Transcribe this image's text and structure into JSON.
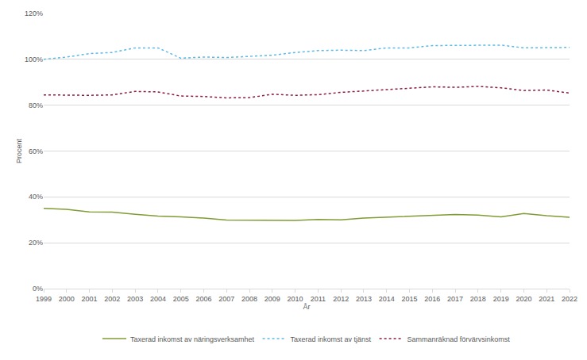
{
  "chart_data": {
    "type": "line",
    "x_label": "År",
    "y_label": "Procent",
    "categories": [
      "1999",
      "2000",
      "2001",
      "2002",
      "2003",
      "2004",
      "2005",
      "2006",
      "2007",
      "2008",
      "2009",
      "2010",
      "2011",
      "2012",
      "2013",
      "2014",
      "2015",
      "2016",
      "2017",
      "2018",
      "2019",
      "2020",
      "2021",
      "2022"
    ],
    "series": [
      {
        "name": "Taxerad inkomst av näringsverksamhet",
        "color": "#7f9c35",
        "line_style": "solid",
        "values": [
          35,
          34.6,
          33.5,
          33.4,
          32.4,
          31.6,
          31.3,
          30.8,
          29.9,
          29.9,
          29.7,
          29.7,
          30.2,
          30,
          30.8,
          31.2,
          31.6,
          32,
          32.3,
          32.1,
          31.3,
          32.8,
          31.8,
          31.1
        ]
      },
      {
        "name": "Taxerad inkomst av tjänst",
        "color": "#5cb9e8",
        "line_style": "dotted",
        "values": [
          100,
          101,
          102.5,
          103,
          105,
          105,
          100.5,
          101,
          100.8,
          101.2,
          101.8,
          103,
          103.8,
          104,
          103.8,
          105,
          105,
          106,
          106,
          106.2,
          106.2,
          105,
          105.2,
          105.2
        ]
      },
      {
        "name": "Sammanräknad förvärvsinkomst",
        "color": "#8c1c3c",
        "line_style": "dotted",
        "values": [
          84.5,
          84.3,
          84.3,
          84.5,
          86,
          85.8,
          84,
          83.8,
          83.2,
          83.3,
          84.8,
          84.3,
          84.6,
          85.6,
          86.2,
          86.8,
          87.2,
          88,
          87.8,
          88.2,
          87.6,
          86.4,
          86.6,
          85.3
        ]
      }
    ],
    "ylim": [
      0,
      120
    ],
    "yticks": [
      {
        "value": 0,
        "label": "0%"
      },
      {
        "value": 20,
        "label": "20%"
      },
      {
        "value": 40,
        "label": "40%"
      },
      {
        "value": 60,
        "label": "60%"
      },
      {
        "value": 80,
        "label": "80%"
      },
      {
        "value": 100,
        "label": "100%"
      },
      {
        "value": 120,
        "label": "120%"
      }
    ],
    "grid": true,
    "legend": "bottom"
  }
}
